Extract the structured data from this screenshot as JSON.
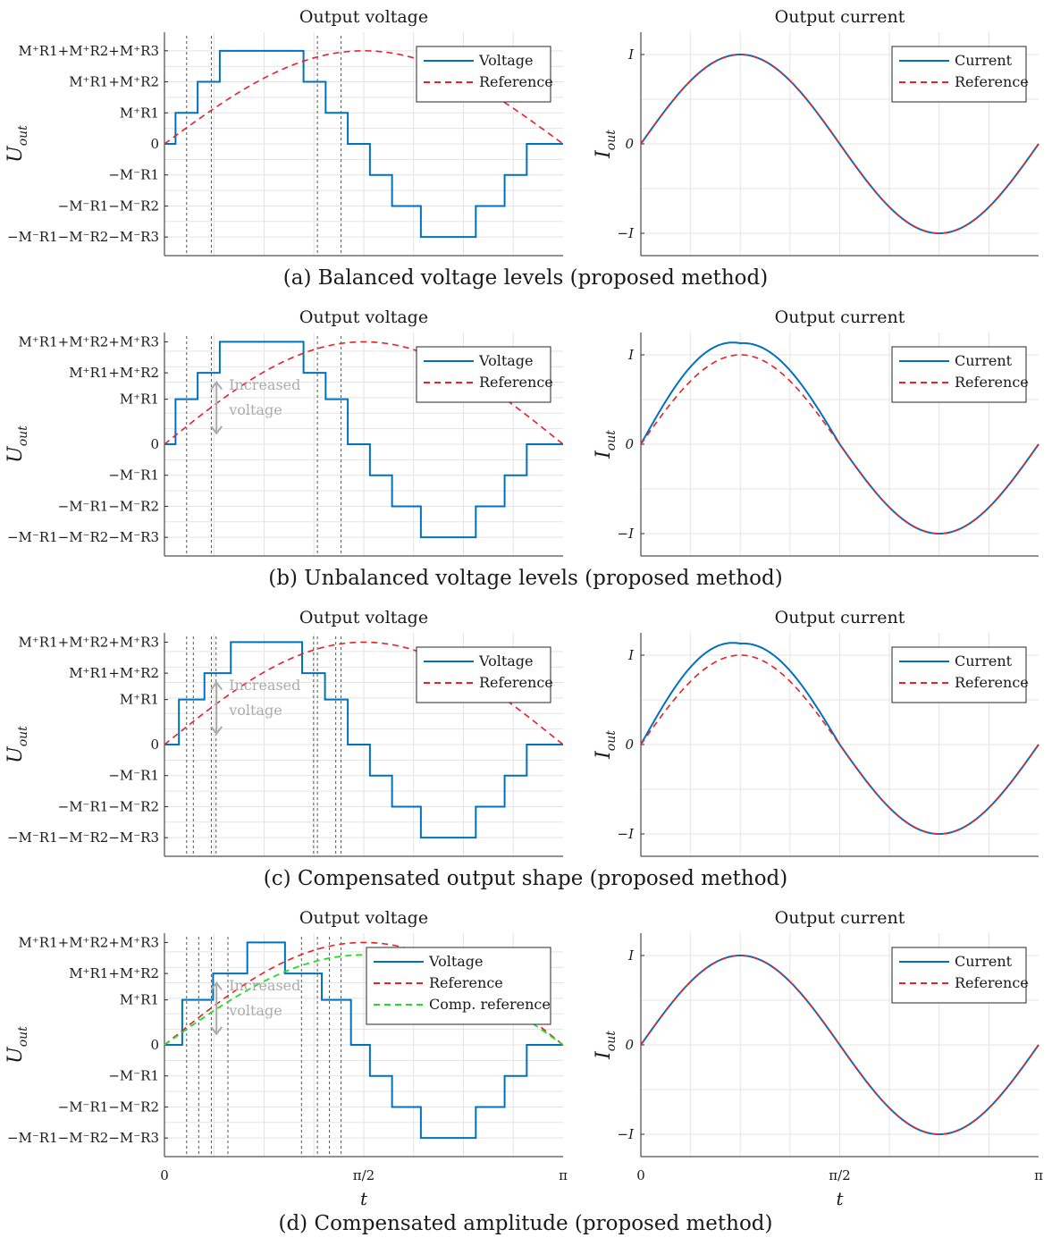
{
  "figure": {
    "x_axis_label": "t",
    "x_ticks": [
      "0",
      "π/2",
      "π"
    ]
  },
  "colors": {
    "voltage": "#0072bd",
    "current": "#0072bd",
    "reference": "#e8202a",
    "comp_reference": "#22dd22",
    "annotation": "#ababab",
    "grid": "#e3e3e3"
  },
  "chart_data": [
    {
      "type": "line",
      "panel": "a",
      "title": "Output voltage",
      "caption": "(a) Balanced voltage levels (proposed method)",
      "ylabel": "U_out",
      "y_ticks": [
        "M⁺R1+M⁺R2+M⁺R3",
        "M⁺R1+M⁺R2",
        "M⁺R1",
        "0",
        "−M⁻R1",
        "−M⁻R1−M⁻R2",
        "−M⁻R1−M⁻R2−M⁻R3"
      ],
      "xlim": [
        0,
        3.1416
      ],
      "ylim": [
        -3.6,
        3.6
      ],
      "legend_position": "top-right",
      "series": [
        {
          "name": "Voltage",
          "style": "staircase",
          "x": [
            0,
            0.0872,
            0.0872,
            0.2616,
            0.2616,
            0.436,
            0.436,
            0.6632,
            0.6632,
            1.096,
            1.096,
            1.2704,
            1.2704,
            1.4448,
            1.4448,
            1.6192,
            1.6192,
            1.7936,
            1.7936,
            2.0208,
            2.0208,
            2.4536,
            2.4536,
            2.6808,
            2.6808,
            2.8552,
            2.8552,
            3.0296,
            3.0296,
            3.1416
          ],
          "y": [
            0,
            0,
            1,
            1,
            2,
            2,
            3,
            3,
            3,
            3,
            2,
            2,
            1,
            1,
            0,
            0,
            -1,
            -1,
            -2,
            -2,
            -3,
            -3,
            -2,
            -2,
            -1,
            -1,
            0,
            0,
            0,
            0
          ]
        },
        {
          "name": "Reference",
          "style": "dashed",
          "function": "3*sin(t)",
          "amplitude": 3
        }
      ],
      "vlines": [
        0.1745,
        0.3696,
        1.2053,
        1.3917
      ],
      "stairs": {
        "levels": [
          1,
          2,
          3
        ],
        "up_edges": [
          0.0872,
          0.2616,
          0.436
        ],
        "flat_end": 1.096,
        "down_edges": [
          1.096,
          1.2704,
          1.4448
        ]
      }
    },
    {
      "type": "line",
      "panel": "a",
      "title": "Output current",
      "ylabel": "I_out",
      "y_ticks": [
        "I",
        "0",
        "−I"
      ],
      "xlim": [
        0,
        3.1416
      ],
      "ylim": [
        -1.25,
        1.25
      ],
      "legend_position": "top-right",
      "series": [
        {
          "name": "Current",
          "style": "solid",
          "function": "sin(2t)",
          "amplitude": 1
        },
        {
          "name": "Reference",
          "style": "dashed",
          "function": "sin(2t)",
          "amplitude": 1
        }
      ]
    },
    {
      "type": "line",
      "panel": "b",
      "title": "Output voltage",
      "caption": "(b) Unbalanced voltage levels (proposed method)",
      "ylabel": "U_out",
      "y_ticks": [
        "M⁺R1+M⁺R2+M⁺R3",
        "M⁺R1+M⁺R2",
        "M⁺R1",
        "0",
        "−M⁻R1",
        "−M⁻R1−M⁻R2",
        "−M⁻R1−M⁻R2−M⁻R3"
      ],
      "xlim": [
        0,
        3.1416
      ],
      "ylim": [
        -3.6,
        3.6
      ],
      "legend_position": "top-right",
      "annotation": [
        "Increased",
        "voltage"
      ],
      "series": [
        {
          "name": "Voltage",
          "style": "staircase",
          "up_levels": [
            1.45,
            2.3,
            3.3
          ],
          "up_edges": [
            0.0872,
            0.2616,
            0.436
          ],
          "flat_end": 1.096,
          "down_levels": [
            2.3,
            1.45,
            0
          ],
          "down_edges": [
            1.096,
            1.2704,
            1.4448
          ],
          "negative_levels": [
            -1,
            -2,
            -3
          ]
        },
        {
          "name": "Reference",
          "style": "dashed",
          "function": "3.3*sin(t)",
          "amplitude_pos": 3.3,
          "amplitude_neg": 3
        }
      ],
      "vlines": [
        0.1745,
        0.3696,
        1.2053,
        1.3917
      ]
    },
    {
      "type": "line",
      "panel": "b",
      "title": "Output current",
      "ylabel": "I_out",
      "y_ticks": [
        "I",
        "0",
        "−I"
      ],
      "xlim": [
        0,
        3.1416
      ],
      "ylim": [
        -1.25,
        1.25
      ],
      "legend_position": "top-right",
      "series": [
        {
          "name": "Current",
          "style": "solid",
          "amplitude_pos": 1.13,
          "amplitude_neg": 1
        },
        {
          "name": "Reference",
          "style": "dashed",
          "function": "sin(2t)",
          "amplitude": 1
        }
      ]
    },
    {
      "type": "line",
      "panel": "c",
      "title": "Output voltage",
      "caption": "(c) Compensated output shape (proposed method)",
      "ylabel": "U_out",
      "y_ticks": [
        "M⁺R1+M⁺R2+M⁺R3",
        "M⁺R1+M⁺R2",
        "M⁺R1",
        "0",
        "−M⁻R1",
        "−M⁻R1−M⁻R2",
        "−M⁻R1−M⁻R2−M⁻R3"
      ],
      "xlim": [
        0,
        3.1416
      ],
      "ylim": [
        -3.6,
        3.6
      ],
      "legend_position": "top-right",
      "annotation": [
        "Increased",
        "voltage"
      ],
      "series": [
        {
          "name": "Voltage",
          "style": "staircase",
          "up_levels": [
            1.45,
            2.3,
            3.3
          ],
          "up_edges": [
            0.114,
            0.315,
            0.523
          ],
          "flat_end": 1.085,
          "down_levels": [
            2.3,
            1.45,
            0
          ],
          "down_edges": [
            1.085,
            1.265,
            1.4448
          ],
          "negative_levels": [
            -1,
            -2,
            -3
          ]
        },
        {
          "name": "Reference",
          "style": "dashed",
          "function": "3.3*sin(t)",
          "amplitude_pos": 3.3,
          "amplitude_neg": 3
        }
      ],
      "vlines": [
        0.1745,
        0.2275,
        0.3696,
        0.4066,
        1.175,
        1.2053,
        1.35,
        1.3917
      ]
    },
    {
      "type": "line",
      "panel": "c",
      "title": "Output current",
      "ylabel": "I_out",
      "y_ticks": [
        "I",
        "0",
        "−I"
      ],
      "xlim": [
        0,
        3.1416
      ],
      "ylim": [
        -1.25,
        1.25
      ],
      "legend_position": "top-right",
      "series": [
        {
          "name": "Current",
          "style": "solid",
          "amplitude_pos": 1.13,
          "amplitude_neg": 1
        },
        {
          "name": "Reference",
          "style": "dashed",
          "function": "sin(2t)",
          "amplitude": 1
        }
      ]
    },
    {
      "type": "line",
      "panel": "d",
      "title": "Output voltage",
      "caption": "(d) Compensated amplitude (proposed method)",
      "ylabel": "U_out",
      "y_ticks": [
        "M⁺R1+M⁺R2+M⁺R3",
        "M⁺R1+M⁺R2",
        "M⁺R1",
        "0",
        "−M⁻R1",
        "−M⁻R1−M⁻R2",
        "−M⁻R1−M⁻R2−M⁻R3"
      ],
      "xlim": [
        0,
        3.1416
      ],
      "ylim": [
        -3.6,
        3.6
      ],
      "legend_position": "top-right",
      "annotation": [
        "Increased",
        "voltage"
      ],
      "series": [
        {
          "name": "Voltage",
          "style": "staircase",
          "up_levels": [
            1.45,
            2.3,
            3.3
          ],
          "up_edges": [
            0.14,
            0.383,
            0.653
          ],
          "flat_end": 0.95,
          "down_levels": [
            2.3,
            1.45,
            0
          ],
          "down_edges": [
            0.95,
            1.24,
            1.47
          ],
          "negative_levels": [
            -1,
            -2,
            -3
          ]
        },
        {
          "name": "Reference",
          "style": "dashed",
          "function": "3.3*sin(t)",
          "amplitude_pos": 3.3,
          "amplitude_neg": 3
        },
        {
          "name": "Comp. reference",
          "style": "dashed",
          "function": "2.9*sin(t)",
          "amplitude_pos": 2.9,
          "amplitude_neg": 3
        }
      ],
      "vlines": [
        0.1745,
        0.27,
        0.3696,
        0.5,
        1.08,
        1.2053,
        1.3,
        1.3917
      ]
    },
    {
      "type": "line",
      "panel": "d",
      "title": "Output current",
      "ylabel": "I_out",
      "y_ticks": [
        "I",
        "0",
        "−I"
      ],
      "xlim": [
        0,
        3.1416
      ],
      "ylim": [
        -1.25,
        1.25
      ],
      "legend_position": "top-right",
      "series": [
        {
          "name": "Current",
          "style": "solid",
          "function": "sin(2t)",
          "amplitude": 1
        },
        {
          "name": "Reference",
          "style": "dashed",
          "function": "sin(2t)",
          "amplitude": 1
        }
      ]
    }
  ]
}
